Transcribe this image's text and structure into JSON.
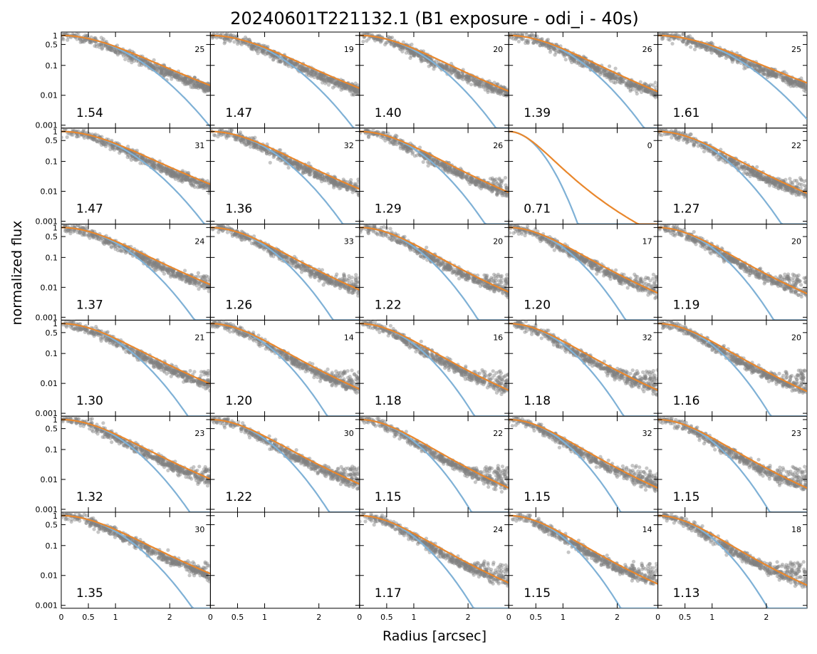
{
  "chart_data": {
    "type": "scatter",
    "title": "20240601T221132.1 (B1 exposure - odi_i - 40s)",
    "xlabel": "Radius [arcsec]",
    "ylabel": "normalized flux",
    "yscale": "log",
    "ylim": [
      0.0008,
      1.3
    ],
    "xlim": [
      0,
      2.75
    ],
    "y_ticks": [
      1,
      0.5,
      0.1,
      0.01,
      0.001
    ],
    "y_tick_labels": [
      "1",
      "0.5",
      "0.1",
      "0.01",
      "0.001"
    ],
    "x_ticks": [
      0,
      0.5,
      1,
      2
    ],
    "x_tick_labels": [
      "0",
      "0.5",
      "1",
      "2"
    ],
    "grid": false,
    "layout": {
      "rows": 6,
      "cols": 5
    },
    "colors": {
      "points": "#808080",
      "fit": "#e9872c",
      "reference": "#7fb1d6"
    },
    "panels": [
      {
        "row": 0,
        "col": 0,
        "fwhm": "1.54",
        "count": "25"
      },
      {
        "row": 0,
        "col": 1,
        "fwhm": "1.47",
        "count": "19"
      },
      {
        "row": 0,
        "col": 2,
        "fwhm": "1.40",
        "count": "20"
      },
      {
        "row": 0,
        "col": 3,
        "fwhm": "1.39",
        "count": "26"
      },
      {
        "row": 0,
        "col": 4,
        "fwhm": "1.61",
        "count": "25"
      },
      {
        "row": 1,
        "col": 0,
        "fwhm": "1.47",
        "count": "31"
      },
      {
        "row": 1,
        "col": 1,
        "fwhm": "1.36",
        "count": "32"
      },
      {
        "row": 1,
        "col": 2,
        "fwhm": "1.29",
        "count": "26"
      },
      {
        "row": 1,
        "col": 3,
        "fwhm": "0.71",
        "count": "0"
      },
      {
        "row": 1,
        "col": 4,
        "fwhm": "1.27",
        "count": "22"
      },
      {
        "row": 2,
        "col": 0,
        "fwhm": "1.37",
        "count": "24"
      },
      {
        "row": 2,
        "col": 1,
        "fwhm": "1.26",
        "count": "33"
      },
      {
        "row": 2,
        "col": 2,
        "fwhm": "1.22",
        "count": "20"
      },
      {
        "row": 2,
        "col": 3,
        "fwhm": "1.20",
        "count": "17"
      },
      {
        "row": 2,
        "col": 4,
        "fwhm": "1.19",
        "count": "20"
      },
      {
        "row": 3,
        "col": 0,
        "fwhm": "1.30",
        "count": "21"
      },
      {
        "row": 3,
        "col": 1,
        "fwhm": "1.20",
        "count": "14"
      },
      {
        "row": 3,
        "col": 2,
        "fwhm": "1.18",
        "count": "16"
      },
      {
        "row": 3,
        "col": 3,
        "fwhm": "1.18",
        "count": "32"
      },
      {
        "row": 3,
        "col": 4,
        "fwhm": "1.16",
        "count": "20"
      },
      {
        "row": 4,
        "col": 0,
        "fwhm": "1.32",
        "count": "23"
      },
      {
        "row": 4,
        "col": 1,
        "fwhm": "1.22",
        "count": "30"
      },
      {
        "row": 4,
        "col": 2,
        "fwhm": "1.15",
        "count": "22"
      },
      {
        "row": 4,
        "col": 3,
        "fwhm": "1.15",
        "count": "32"
      },
      {
        "row": 4,
        "col": 4,
        "fwhm": "1.15",
        "count": "23"
      },
      {
        "row": 5,
        "col": 0,
        "fwhm": "1.35",
        "count": "30"
      },
      {
        "row": 5,
        "col": 1,
        "fwhm": null,
        "count": null
      },
      {
        "row": 5,
        "col": 2,
        "fwhm": "1.17",
        "count": "24"
      },
      {
        "row": 5,
        "col": 3,
        "fwhm": "1.15",
        "count": "14"
      },
      {
        "row": 5,
        "col": 4,
        "fwhm": "1.13",
        "count": "18"
      }
    ]
  }
}
